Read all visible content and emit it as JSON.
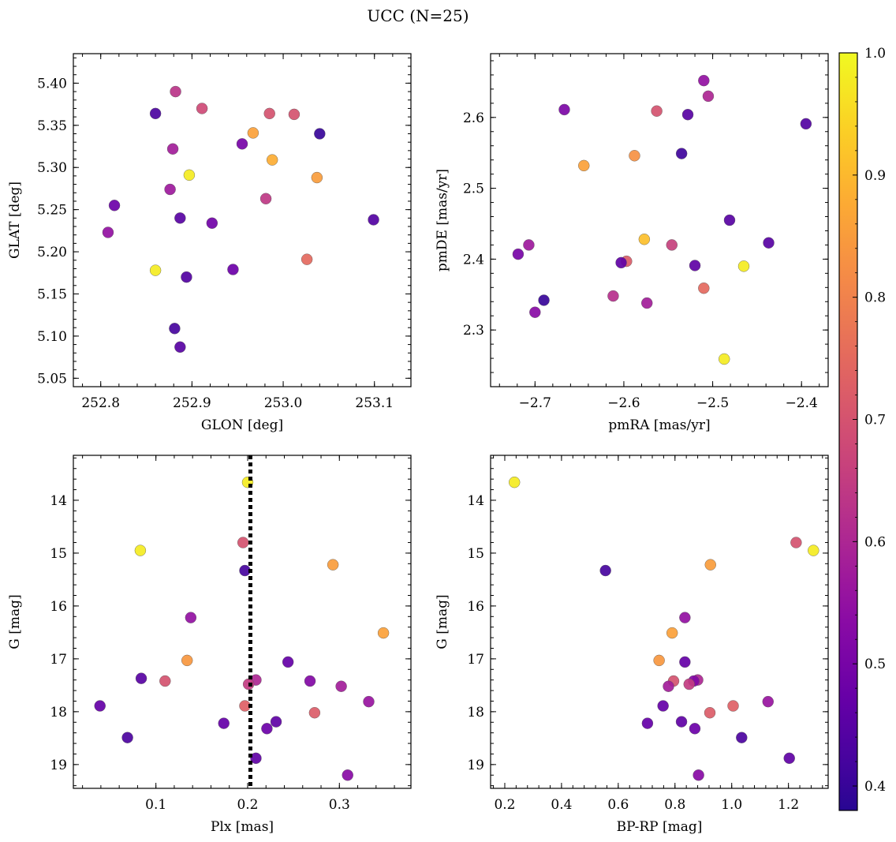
{
  "figure": {
    "title": "UCC (N=25)"
  },
  "colorbar": {
    "range": [
      0.38,
      1.0
    ],
    "ticks": [
      0.4,
      0.5,
      0.6,
      0.7,
      0.8,
      0.9,
      1.0
    ],
    "tick_labels": [
      "0.4",
      "0.5",
      "0.6",
      "0.7",
      "0.8",
      "0.9",
      "1.0"
    ],
    "colormap": "plasma"
  },
  "chart_data": [
    {
      "type": "scatter",
      "xlabel": "GLON [deg]",
      "ylabel": "GLAT [deg]",
      "xlim": [
        252.77,
        253.14
      ],
      "ylim": [
        5.04,
        5.435
      ],
      "x_ticks": [
        252.8,
        252.9,
        253.0,
        253.1
      ],
      "x_tick_labels": [
        "252.8",
        "252.9",
        "253.0",
        "253.1"
      ],
      "y_ticks": [
        5.05,
        5.1,
        5.15,
        5.2,
        5.25,
        5.3,
        5.35,
        5.4
      ],
      "y_tick_labels": [
        "5.05",
        "5.10",
        "5.15",
        "5.20",
        "5.25",
        "5.30",
        "5.35",
        "5.40"
      ],
      "y_inverted": false,
      "points": [
        {
          "x": 252.882,
          "y": 5.39,
          "c": 0.63
        },
        {
          "x": 252.911,
          "y": 5.37,
          "c": 0.68
        },
        {
          "x": 252.86,
          "y": 5.364,
          "c": 0.43
        },
        {
          "x": 252.985,
          "y": 5.364,
          "c": 0.7
        },
        {
          "x": 253.012,
          "y": 5.363,
          "c": 0.7
        },
        {
          "x": 253.04,
          "y": 5.34,
          "c": 0.4
        },
        {
          "x": 252.967,
          "y": 5.341,
          "c": 0.86
        },
        {
          "x": 252.955,
          "y": 5.328,
          "c": 0.5
        },
        {
          "x": 252.879,
          "y": 5.322,
          "c": 0.58
        },
        {
          "x": 252.988,
          "y": 5.309,
          "c": 0.88
        },
        {
          "x": 252.897,
          "y": 5.291,
          "c": 0.98
        },
        {
          "x": 253.037,
          "y": 5.288,
          "c": 0.85
        },
        {
          "x": 252.876,
          "y": 5.274,
          "c": 0.57
        },
        {
          "x": 252.981,
          "y": 5.263,
          "c": 0.64
        },
        {
          "x": 252.815,
          "y": 5.255,
          "c": 0.48
        },
        {
          "x": 252.887,
          "y": 5.24,
          "c": 0.45
        },
        {
          "x": 252.922,
          "y": 5.234,
          "c": 0.49
        },
        {
          "x": 253.099,
          "y": 5.238,
          "c": 0.44
        },
        {
          "x": 252.808,
          "y": 5.223,
          "c": 0.55
        },
        {
          "x": 253.026,
          "y": 5.191,
          "c": 0.75
        },
        {
          "x": 252.86,
          "y": 5.178,
          "c": 0.98
        },
        {
          "x": 252.945,
          "y": 5.179,
          "c": 0.48
        },
        {
          "x": 252.894,
          "y": 5.17,
          "c": 0.44
        },
        {
          "x": 252.881,
          "y": 5.109,
          "c": 0.42
        },
        {
          "x": 252.887,
          "y": 5.087,
          "c": 0.45
        }
      ]
    },
    {
      "type": "scatter",
      "xlabel": "pmRA [mas/yr]",
      "ylabel": "pmDE [mas/yr]",
      "xlim": [
        -2.75,
        -2.37
      ],
      "ylim": [
        2.22,
        2.69
      ],
      "x_ticks": [
        -2.7,
        -2.6,
        -2.5,
        -2.4
      ],
      "x_tick_labels": [
        "−2.7",
        "−2.6",
        "−2.5",
        "−2.4"
      ],
      "y_ticks": [
        2.3,
        2.4,
        2.5,
        2.6
      ],
      "y_tick_labels": [
        "2.3",
        "2.4",
        "2.5",
        "2.6"
      ],
      "y_inverted": false,
      "points": [
        {
          "x": -2.51,
          "y": 2.652,
          "c": 0.55
        },
        {
          "x": -2.505,
          "y": 2.63,
          "c": 0.6
        },
        {
          "x": -2.667,
          "y": 2.611,
          "c": 0.51
        },
        {
          "x": -2.563,
          "y": 2.609,
          "c": 0.7
        },
        {
          "x": -2.528,
          "y": 2.604,
          "c": 0.45
        },
        {
          "x": -2.395,
          "y": 2.591,
          "c": 0.44
        },
        {
          "x": -2.535,
          "y": 2.549,
          "c": 0.41
        },
        {
          "x": -2.588,
          "y": 2.546,
          "c": 0.83
        },
        {
          "x": -2.645,
          "y": 2.532,
          "c": 0.86
        },
        {
          "x": -2.481,
          "y": 2.455,
          "c": 0.45
        },
        {
          "x": -2.577,
          "y": 2.428,
          "c": 0.91
        },
        {
          "x": -2.437,
          "y": 2.423,
          "c": 0.45
        },
        {
          "x": -2.546,
          "y": 2.42,
          "c": 0.66
        },
        {
          "x": -2.707,
          "y": 2.42,
          "c": 0.57
        },
        {
          "x": -2.719,
          "y": 2.407,
          "c": 0.5
        },
        {
          "x": -2.597,
          "y": 2.397,
          "c": 0.72
        },
        {
          "x": -2.603,
          "y": 2.395,
          "c": 0.46
        },
        {
          "x": -2.52,
          "y": 2.391,
          "c": 0.46
        },
        {
          "x": -2.465,
          "y": 2.39,
          "c": 0.98
        },
        {
          "x": -2.51,
          "y": 2.359,
          "c": 0.75
        },
        {
          "x": -2.612,
          "y": 2.348,
          "c": 0.62
        },
        {
          "x": -2.69,
          "y": 2.342,
          "c": 0.4
        },
        {
          "x": -2.574,
          "y": 2.338,
          "c": 0.58
        },
        {
          "x": -2.7,
          "y": 2.325,
          "c": 0.53
        },
        {
          "x": -2.487,
          "y": 2.259,
          "c": 0.98
        }
      ]
    },
    {
      "type": "scatter",
      "xlabel": "Plx [mas]",
      "ylabel": "G [mag]",
      "xlim": [
        0.01,
        0.378
      ],
      "ylim": [
        13.15,
        19.45
      ],
      "x_ticks": [
        0.1,
        0.2,
        0.3
      ],
      "x_tick_labels": [
        "0.1",
        "0.2",
        "0.3"
      ],
      "y_ticks": [
        14,
        15,
        16,
        17,
        18,
        19
      ],
      "y_tick_labels": [
        "14",
        "15",
        "16",
        "17",
        "18",
        "19"
      ],
      "y_inverted": true,
      "vline": 0.203,
      "points": [
        {
          "x": 0.2,
          "y": 13.66,
          "c": 0.98
        },
        {
          "x": 0.083,
          "y": 14.95,
          "c": 0.98
        },
        {
          "x": 0.195,
          "y": 14.8,
          "c": 0.7
        },
        {
          "x": 0.197,
          "y": 15.33,
          "c": 0.42
        },
        {
          "x": 0.293,
          "y": 15.22,
          "c": 0.85
        },
        {
          "x": 0.138,
          "y": 16.22,
          "c": 0.55
        },
        {
          "x": 0.348,
          "y": 16.51,
          "c": 0.86
        },
        {
          "x": 0.134,
          "y": 17.03,
          "c": 0.84
        },
        {
          "x": 0.244,
          "y": 17.06,
          "c": 0.47
        },
        {
          "x": 0.084,
          "y": 17.37,
          "c": 0.45
        },
        {
          "x": 0.11,
          "y": 17.42,
          "c": 0.7
        },
        {
          "x": 0.209,
          "y": 17.4,
          "c": 0.6
        },
        {
          "x": 0.268,
          "y": 17.42,
          "c": 0.52
        },
        {
          "x": 0.201,
          "y": 17.48,
          "c": 0.65
        },
        {
          "x": 0.302,
          "y": 17.52,
          "c": 0.58
        },
        {
          "x": 0.332,
          "y": 17.81,
          "c": 0.56
        },
        {
          "x": 0.039,
          "y": 17.89,
          "c": 0.47
        },
        {
          "x": 0.197,
          "y": 17.89,
          "c": 0.73
        },
        {
          "x": 0.273,
          "y": 18.02,
          "c": 0.72
        },
        {
          "x": 0.174,
          "y": 18.22,
          "c": 0.47
        },
        {
          "x": 0.231,
          "y": 18.19,
          "c": 0.46
        },
        {
          "x": 0.221,
          "y": 18.32,
          "c": 0.48
        },
        {
          "x": 0.069,
          "y": 18.49,
          "c": 0.43
        },
        {
          "x": 0.209,
          "y": 18.88,
          "c": 0.46
        },
        {
          "x": 0.309,
          "y": 19.2,
          "c": 0.53
        }
      ]
    },
    {
      "type": "scatter",
      "xlabel": "BP-RP [mag]",
      "ylabel": "G [mag]",
      "xlim": [
        0.15,
        1.34
      ],
      "ylim": [
        13.15,
        19.45
      ],
      "x_ticks": [
        0.2,
        0.4,
        0.6,
        0.8,
        1.0,
        1.2
      ],
      "x_tick_labels": [
        "0.2",
        "0.4",
        "0.6",
        "0.8",
        "1.0",
        "1.2"
      ],
      "y_ticks": [
        14,
        15,
        16,
        17,
        18,
        19
      ],
      "y_tick_labels": [
        "14",
        "15",
        "16",
        "17",
        "18",
        "19"
      ],
      "y_inverted": true,
      "points": [
        {
          "x": 0.234,
          "y": 13.66,
          "c": 0.98
        },
        {
          "x": 0.555,
          "y": 15.33,
          "c": 0.42
        },
        {
          "x": 1.227,
          "y": 14.8,
          "c": 0.7
        },
        {
          "x": 1.288,
          "y": 14.95,
          "c": 0.98
        },
        {
          "x": 0.925,
          "y": 15.22,
          "c": 0.85
        },
        {
          "x": 0.835,
          "y": 16.22,
          "c": 0.55
        },
        {
          "x": 0.79,
          "y": 16.51,
          "c": 0.86
        },
        {
          "x": 0.744,
          "y": 17.03,
          "c": 0.84
        },
        {
          "x": 0.835,
          "y": 17.06,
          "c": 0.47
        },
        {
          "x": 0.795,
          "y": 17.42,
          "c": 0.7
        },
        {
          "x": 0.88,
          "y": 17.4,
          "c": 0.6
        },
        {
          "x": 0.866,
          "y": 17.42,
          "c": 0.52
        },
        {
          "x": 0.85,
          "y": 17.48,
          "c": 0.65
        },
        {
          "x": 0.777,
          "y": 17.52,
          "c": 0.58
        },
        {
          "x": 1.128,
          "y": 17.81,
          "c": 0.56
        },
        {
          "x": 0.758,
          "y": 17.89,
          "c": 0.47
        },
        {
          "x": 1.005,
          "y": 17.89,
          "c": 0.73
        },
        {
          "x": 0.923,
          "y": 18.02,
          "c": 0.72
        },
        {
          "x": 0.703,
          "y": 18.22,
          "c": 0.47
        },
        {
          "x": 0.823,
          "y": 18.19,
          "c": 0.46
        },
        {
          "x": 0.87,
          "y": 18.32,
          "c": 0.48
        },
        {
          "x": 1.035,
          "y": 18.49,
          "c": 0.43
        },
        {
          "x": 1.203,
          "y": 18.88,
          "c": 0.46
        },
        {
          "x": 0.883,
          "y": 19.2,
          "c": 0.53
        }
      ]
    }
  ]
}
